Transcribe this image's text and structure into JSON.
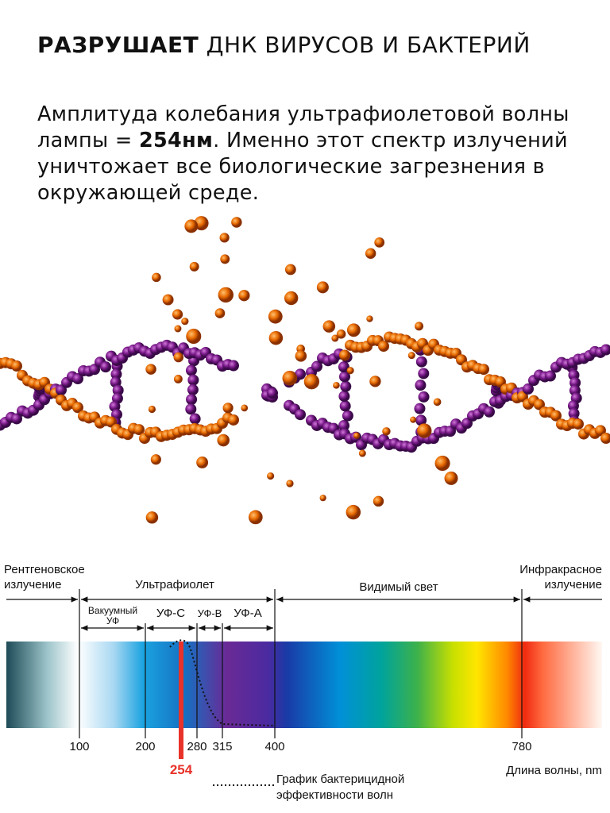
{
  "header": {
    "title_bold": "РАЗРУШАЕТ",
    "title_rest": "ДНК ВИРУСОВ И БАКТЕРИЙ"
  },
  "intro": {
    "text_before": "Амплитуда колебания ультрафиолетовой волны лампы = ",
    "text_bold": "254нм",
    "text_after": ". Именно этот спектр излучений уничтожает все биологические загрезнения в окружающей среде."
  },
  "spectrum": {
    "regions": {
      "xray": [
        "Рентгеновское",
        "излучение"
      ],
      "uv": "Ультрафиолет",
      "visible": "Видимый свет",
      "infrared": [
        "Инфракрасное",
        "излучение"
      ]
    },
    "uv_bands": {
      "vacuum": [
        "Вакуумный",
        "УФ"
      ],
      "uvc": "УФ-С",
      "uvb": "УФ-В",
      "uva": "УФ-А"
    },
    "ticks": [
      "100",
      "200",
      "280",
      "315",
      "400",
      "780"
    ],
    "highlight": "254",
    "axis_label": "Длина волны, nm",
    "legend": [
      "График бактерицидной",
      "эффективности волн"
    ]
  }
}
